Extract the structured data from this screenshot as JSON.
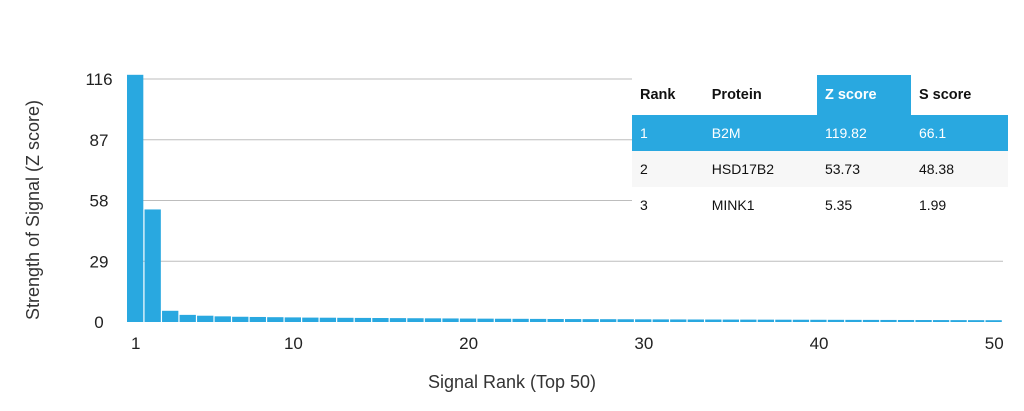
{
  "chart_data": {
    "type": "bar",
    "xlabel": "Signal Rank (Top 50)",
    "ylabel": "Strength of Signal (Z score)",
    "ylim": [
      0,
      116
    ],
    "yticks": [
      0,
      29,
      58,
      87,
      116
    ],
    "xticks": [
      1,
      10,
      20,
      30,
      40,
      50
    ],
    "grid": true,
    "bar_color": "#29a8e0",
    "x": [
      1,
      2,
      3,
      4,
      5,
      6,
      7,
      8,
      9,
      10,
      11,
      12,
      13,
      14,
      15,
      16,
      17,
      18,
      19,
      20,
      21,
      22,
      23,
      24,
      25,
      26,
      27,
      28,
      29,
      30,
      31,
      32,
      33,
      34,
      35,
      36,
      37,
      38,
      39,
      40,
      41,
      42,
      43,
      44,
      45,
      46,
      47,
      48,
      49,
      50
    ],
    "values": [
      119.82,
      53.73,
      5.35,
      3.4,
      3.0,
      2.7,
      2.5,
      2.4,
      2.3,
      2.2,
      2.1,
      2.05,
      2.0,
      1.95,
      1.9,
      1.85,
      1.8,
      1.75,
      1.7,
      1.65,
      1.6,
      1.56,
      1.52,
      1.48,
      1.44,
      1.4,
      1.37,
      1.34,
      1.31,
      1.28,
      1.25,
      1.22,
      1.2,
      1.18,
      1.16,
      1.14,
      1.12,
      1.1,
      1.08,
      1.06,
      1.04,
      1.02,
      1.0,
      0.98,
      0.96,
      0.94,
      0.92,
      0.9,
      0.88,
      0.86
    ]
  },
  "table": {
    "headers": [
      "Rank",
      "Protein",
      "Z score",
      "S score"
    ],
    "rows": [
      [
        "1",
        "B2M",
        "119.82",
        "66.1"
      ],
      [
        "2",
        "HSD17B2",
        "53.73",
        "48.38"
      ],
      [
        "3",
        "MINK1",
        "5.35",
        "1.99"
      ]
    ],
    "highlight_color": "#29a8e0"
  }
}
